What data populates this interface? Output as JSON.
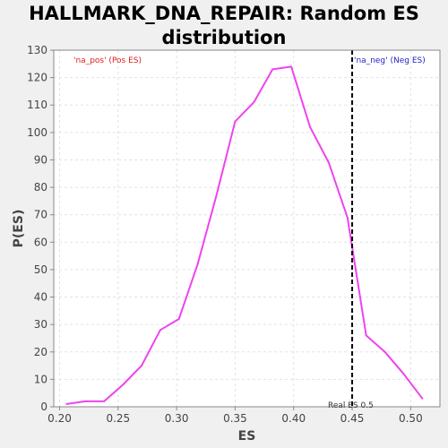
{
  "chart_data": {
    "type": "line",
    "title": "HALLMARK_DNA_REPAIR: Random ES distribution",
    "xlabel": "ES",
    "ylabel": "P(ES)",
    "xlim": [
      0.195,
      0.525
    ],
    "ylim": [
      0,
      130
    ],
    "x_ticks": [
      "0.20",
      "0.25",
      "0.30",
      "0.35",
      "0.40",
      "0.45",
      "0.50"
    ],
    "y_ticks": [
      "0",
      "10",
      "20",
      "30",
      "40",
      "50",
      "60",
      "70",
      "80",
      "90",
      "100",
      "110",
      "120",
      "130"
    ],
    "grid": true,
    "series": [
      {
        "color": "#ee44ee",
        "x": [
          0.206,
          0.222,
          0.238,
          0.254,
          0.27,
          0.286,
          0.302,
          0.318,
          0.334,
          0.35,
          0.366,
          0.382,
          0.398,
          0.414,
          0.43,
          0.446,
          0.462,
          0.478,
          0.494,
          0.51
        ],
        "y": [
          1,
          2,
          2,
          8,
          15,
          28,
          32,
          52,
          77,
          104,
          111,
          123,
          124,
          102,
          89,
          69,
          26,
          20,
          12,
          3
        ]
      }
    ],
    "annotations": {
      "pos_label": "'na_pos' (Pos ES)",
      "pos_color": "#dd2222",
      "neg_label": "'na_neg' (Neg ES)",
      "neg_color": "#2222cc",
      "real_es_label": "Real ES 0.5",
      "real_es_x": 0.45
    }
  }
}
